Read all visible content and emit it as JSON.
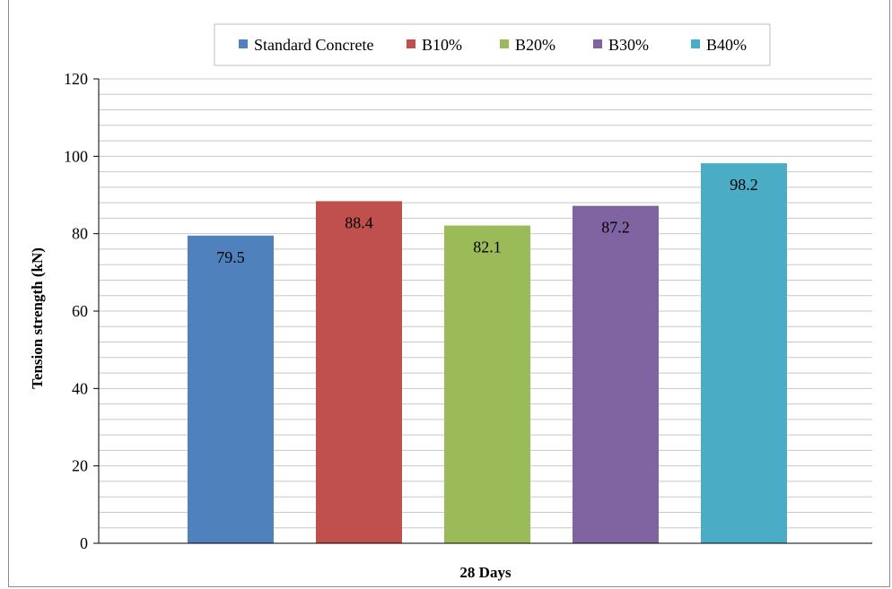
{
  "chart_data": {
    "type": "bar",
    "categories": [
      "28 Days"
    ],
    "xlabel": "28 Days",
    "ylabel": "Tension strength (kN)",
    "ylim": [
      0,
      120
    ],
    "ytick_step": 20,
    "minor_grid_step": 4,
    "grid": true,
    "legend_position": "top-center",
    "series": [
      {
        "name": "Standard Concrete",
        "values": [
          79.5
        ],
        "color": "#4f81bd"
      },
      {
        "name": "B10%",
        "values": [
          88.4
        ],
        "color": "#c0504d"
      },
      {
        "name": "B20%",
        "values": [
          82.1
        ],
        "color": "#9bbb59"
      },
      {
        "name": "B30%",
        "values": [
          87.2
        ],
        "color": "#8064a2"
      },
      {
        "name": "B40%",
        "values": [
          98.2
        ],
        "color": "#4bacc6"
      }
    ],
    "data_labels": [
      "79.5",
      "88.4",
      "82.1",
      "87.2",
      "98.2"
    ]
  }
}
